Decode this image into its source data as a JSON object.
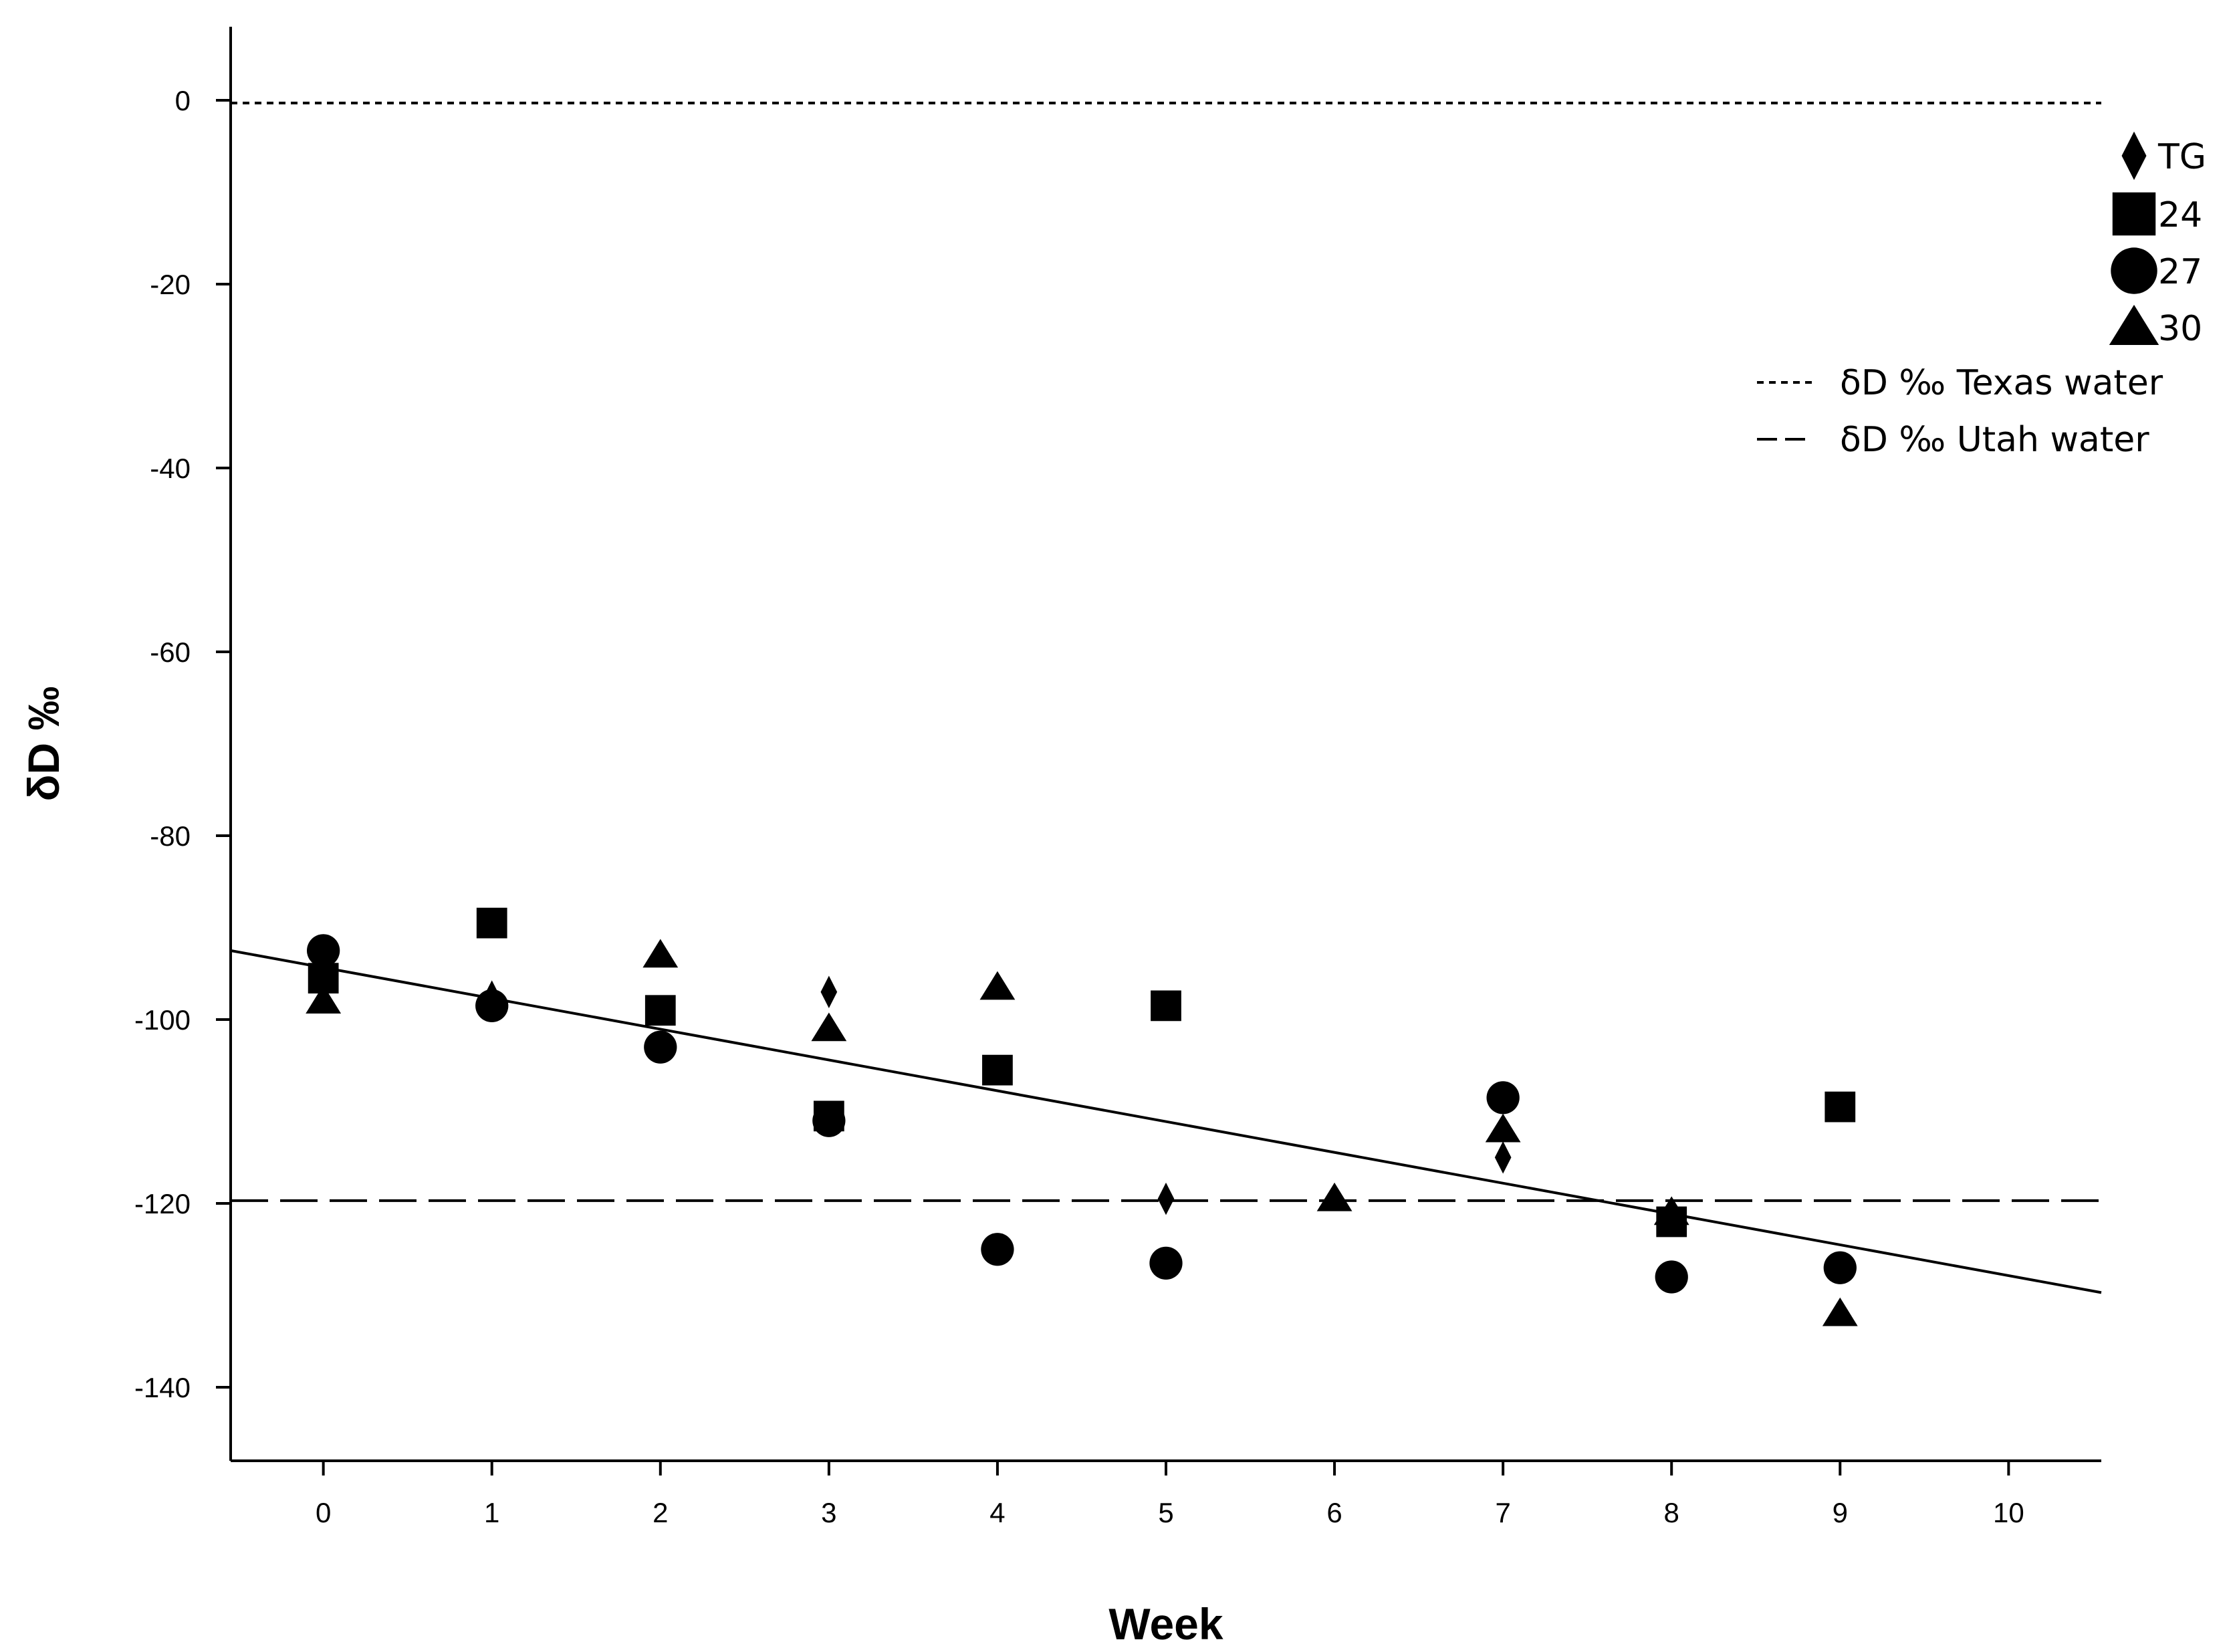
{
  "chart_data": {
    "type": "scatter",
    "title": "",
    "xlabel": "Week",
    "ylabel": "δD ‰",
    "xlim": [
      -0.55,
      10.55
    ],
    "ylim": [
      -148,
      8
    ],
    "xticks": [
      0,
      1,
      2,
      3,
      4,
      5,
      6,
      7,
      8,
      9,
      10
    ],
    "yticks": [
      0,
      -20,
      -40,
      -60,
      -80,
      -100,
      -120,
      -140
    ],
    "grid": false,
    "legend_position": "top-right",
    "series": [
      {
        "name": "TG",
        "marker": "diamond",
        "points": [
          [
            1,
            -97.5
          ],
          [
            3,
            -97
          ],
          [
            5,
            -119.5
          ],
          [
            7,
            -115
          ],
          [
            8,
            -121
          ]
        ]
      },
      {
        "name": "24",
        "marker": "square",
        "points": [
          [
            0,
            -95.5
          ],
          [
            1,
            -89.5
          ],
          [
            2,
            -99
          ],
          [
            3,
            -110.5
          ],
          [
            4,
            -105.5
          ],
          [
            5,
            -98.5
          ],
          [
            8,
            -122
          ],
          [
            9,
            -109.5
          ]
        ]
      },
      {
        "name": "27",
        "marker": "circle",
        "points": [
          [
            0,
            -92.5
          ],
          [
            1,
            -98.5
          ],
          [
            2,
            -103
          ],
          [
            3,
            -111
          ],
          [
            4,
            -125
          ],
          [
            5,
            -126.5
          ],
          [
            7,
            -108.5
          ],
          [
            8,
            -128
          ],
          [
            9,
            -127
          ]
        ]
      },
      {
        "name": "30",
        "marker": "triangle",
        "points": [
          [
            0,
            -98
          ],
          [
            2,
            -93
          ],
          [
            3,
            -101
          ],
          [
            4,
            -96.5
          ],
          [
            6,
            -119.5
          ],
          [
            7,
            -112
          ],
          [
            8,
            -121
          ],
          [
            9,
            -132
          ]
        ]
      }
    ],
    "reference_lines": [
      {
        "name": "δD ‰ Texas water",
        "style": "dotted",
        "y": -0.3
      },
      {
        "name": "δD ‰ Utah water",
        "style": "dashed",
        "y": -119.7
      }
    ],
    "fit_line": {
      "style": "solid",
      "x": [
        -0.55,
        10.55
      ],
      "y": [
        -92.5,
        -129.7
      ]
    }
  }
}
